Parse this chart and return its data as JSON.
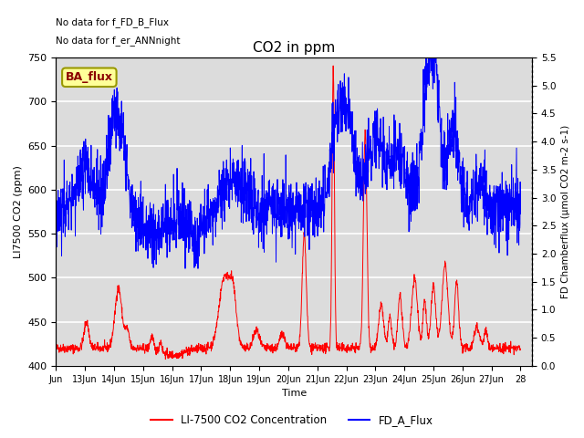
{
  "title": "CO2 in ppm",
  "xlabel": "Time",
  "ylabel_left": "LI7500 CO2 (ppm)",
  "ylabel_right": "FD Chamberflux (μmol CO2 m-2 s-1)",
  "ylim_left": [
    400,
    750
  ],
  "ylim_right": [
    0.0,
    5.5
  ],
  "yticks_left": [
    400,
    450,
    500,
    550,
    600,
    650,
    700,
    750
  ],
  "yticks_right": [
    0.0,
    0.5,
    1.0,
    1.5,
    2.0,
    2.5,
    3.0,
    3.5,
    4.0,
    4.5,
    5.0,
    5.5
  ],
  "xticklabels": [
    "Jun",
    "13Jun",
    "14Jun",
    "15Jun",
    "16Jun",
    "17Jun",
    "18Jun",
    "19Jun",
    "20Jun",
    "21Jun",
    "22Jun",
    "23Jun",
    "24Jun",
    "25Jun",
    "26Jun",
    "27Jun",
    "28"
  ],
  "text_line1": "No data for f_FD_B_Flux",
  "text_line2": "No data for f_er_ANNnight",
  "annotation_box_text": "BA_flux",
  "annotation_box_color": "#ffff99",
  "annotation_box_edge_color": "#999900",
  "annotation_text_color": "#8b0000",
  "plot_bg_color": "#dcdcdc",
  "line_red_color": "#ff0000",
  "line_blue_color": "#0000ff",
  "legend_red_label": "LI-7500 CO2 Concentration",
  "legend_blue_label": "FD_A_Flux",
  "grid_color": "#ffffff",
  "num_points": 2000
}
